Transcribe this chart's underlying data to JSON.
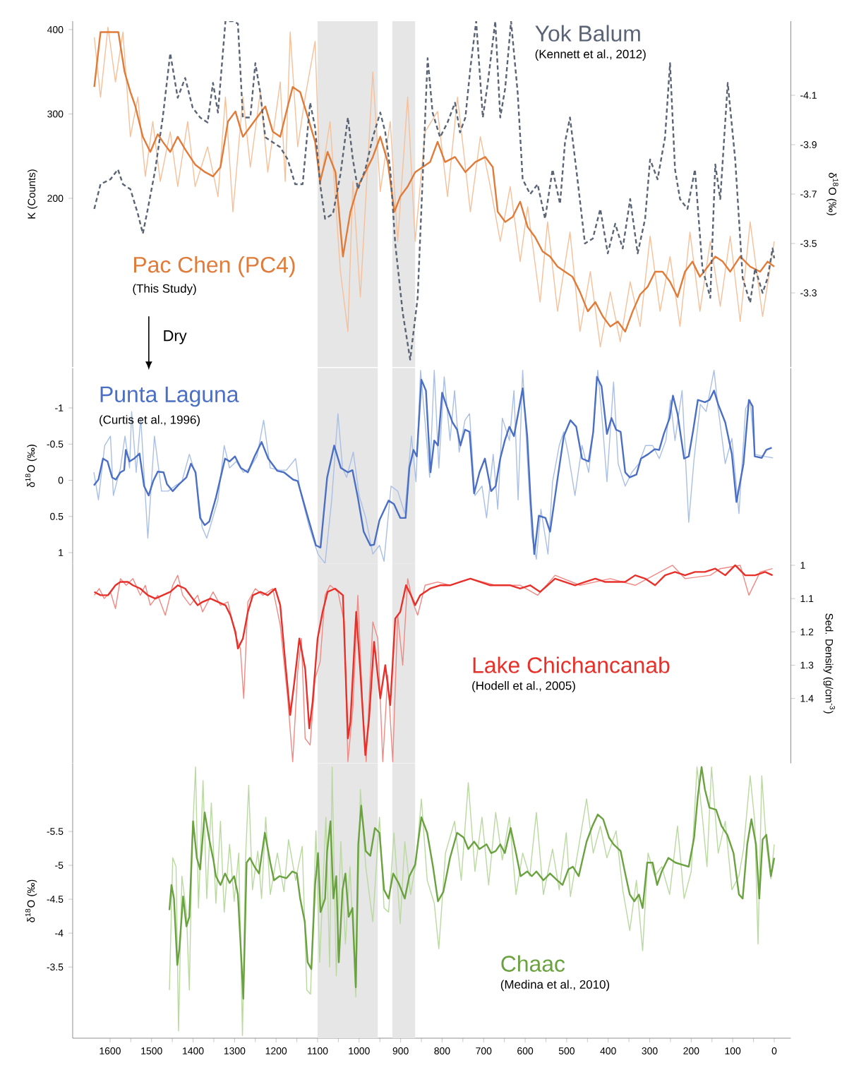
{
  "chart_data": [
    {
      "type": "line",
      "xlim": [
        1690,
        -40
      ],
      "ylim": [
        0,
        410
      ],
      "yticks": [
        200,
        300,
        400
      ],
      "ylabel": "K (Counts)",
      "y2lim": [
        -3.0,
        -4.4
      ],
      "y2ticks": [
        -4.1,
        -3.9,
        -3.7,
        -3.5,
        -3.3
      ],
      "y2label": "δ$^{18}$O (‰)",
      "tick_labels": "y",
      "bands": [
        {
          "axis": "x",
          "from": 1100,
          "to": 955,
          "color": "#e6e6e6"
        },
        {
          "axis": "x",
          "from": 920,
          "to": 865,
          "color": "#e6e6e6"
        }
      ],
      "annotations": [
        "(Kennett et al., 2012)",
        "(This Study)",
        "Dry"
      ],
      "series": [
        {
          "color": "#f5c09a",
          "x": [
            1638,
            1623,
            1605,
            1587,
            1569,
            1551,
            1533,
            1515,
            1497,
            1479,
            1455,
            1437,
            1413,
            1395,
            1365,
            1340,
            1322,
            1304,
            1280,
            1262,
            1238,
            1220,
            1190,
            1178,
            1166,
            1148,
            1130,
            1106,
            1094,
            1070,
            1045,
            1027,
            1015,
            997,
            967,
            949,
            925,
            907,
            883,
            865,
            841,
            811,
            787,
            763,
            732,
            708,
            684,
            660,
            636,
            612,
            594,
            564,
            546,
            522,
            492,
            468,
            443,
            419,
            395,
            371,
            347,
            323,
            299,
            275,
            251,
            227,
            203,
            179,
            154,
            130,
            106,
            82,
            58,
            28,
            0
          ],
          "values": [
            391,
            320,
            403,
            338,
            397,
            273,
            320,
            226,
            291,
            220,
            279,
            214,
            291,
            214,
            261,
            202,
            320,
            184,
            320,
            237,
            326,
            231,
            338,
            220,
            397,
            261,
            320,
            386,
            214,
            291,
            113,
            42,
            220,
            83,
            350,
            208,
            291,
            149,
            320,
            149,
            279,
            303,
            202,
            320,
            184,
            273,
            214,
            149,
            214,
            125,
            190,
            77,
            172,
            66,
            160,
            42,
            113,
            24,
            89,
            30,
            101,
            48,
            155,
            66,
            131,
            48,
            160,
            66,
            149,
            72,
            155,
            54,
            172,
            60,
            149
          ]
        },
        {
          "name": "Pac Chen (PC4)",
          "color": "#e07b39",
          "x": [
            1638,
            1623,
            1580,
            1565,
            1551,
            1539,
            1521,
            1503,
            1485,
            1473,
            1455,
            1437,
            1419,
            1395,
            1371,
            1352,
            1334,
            1316,
            1298,
            1280,
            1262,
            1244,
            1226,
            1208,
            1190,
            1172,
            1160,
            1142,
            1124,
            1106,
            1094,
            1076,
            1057,
            1039,
            1021,
            1003,
            985,
            967,
            949,
            931,
            915,
            901,
            883,
            865,
            847,
            829,
            811,
            793,
            769,
            744,
            720,
            696,
            678,
            666,
            648,
            630,
            612,
            594,
            576,
            558,
            540,
            522,
            504,
            486,
            468,
            449,
            431,
            413,
            395,
            377,
            359,
            341,
            323,
            305,
            287,
            269,
            251,
            233,
            215,
            197,
            179,
            160,
            142,
            124,
            106,
            82,
            58,
            34,
            16,
            0
          ],
          "values": [
            332,
            397,
            397,
            350,
            326,
            309,
            273,
            255,
            276,
            267,
            255,
            273,
            258,
            240,
            231,
            226,
            237,
            291,
            303,
            273,
            285,
            297,
            309,
            279,
            273,
            309,
            332,
            326,
            297,
            267,
            220,
            255,
            231,
            131,
            184,
            214,
            231,
            249,
            273,
            243,
            184,
            202,
            214,
            231,
            237,
            243,
            267,
            243,
            249,
            231,
            243,
            249,
            237,
            184,
            172,
            178,
            196,
            166,
            154,
            137,
            131,
            119,
            113,
            107,
            89,
            66,
            77,
            60,
            48,
            54,
            42,
            66,
            86,
            95,
            113,
            113,
            101,
            83,
            113,
            125,
            107,
            119,
            131,
            125,
            113,
            131,
            119,
            113,
            125,
            119
          ]
        },
        {
          "name": "Yok Balum",
          "color": "#5a6475",
          "axis": "y2",
          "line_style": "dashed",
          "x": [
            1638,
            1623,
            1599,
            1581,
            1569,
            1551,
            1533,
            1521,
            1509,
            1491,
            1473,
            1455,
            1437,
            1419,
            1401,
            1383,
            1365,
            1352,
            1340,
            1322,
            1304,
            1292,
            1280,
            1262,
            1250,
            1238,
            1226,
            1208,
            1190,
            1172,
            1154,
            1136,
            1118,
            1106,
            1094,
            1082,
            1063,
            1045,
            1027,
            1015,
            1003,
            985,
            967,
            949,
            937,
            925,
            913,
            895,
            877,
            859,
            847,
            835,
            823,
            805,
            787,
            769,
            757,
            744,
            732,
            718,
            702,
            690,
            672,
            660,
            648,
            634,
            618,
            606,
            588,
            570,
            552,
            534,
            516,
            504,
            492,
            474,
            456,
            437,
            419,
            401,
            383,
            365,
            347,
            329,
            311,
            299,
            281,
            263,
            251,
            239,
            227,
            209,
            191,
            173,
            154,
            142,
            130,
            112,
            94,
            76,
            58,
            46,
            28,
            16,
            4,
            0
          ],
          "values": [
            -3.64,
            -3.74,
            -3.76,
            -3.8,
            -3.74,
            -3.72,
            -3.62,
            -3.54,
            -3.64,
            -3.8,
            -4.01,
            -4.27,
            -4.09,
            -4.17,
            -4.05,
            -4.01,
            -3.99,
            -4.15,
            -4.03,
            -4.4,
            -4.4,
            -4.39,
            -4.01,
            -4.01,
            -4.23,
            -4.11,
            -3.93,
            -3.91,
            -3.89,
            -3.84,
            -3.74,
            -3.74,
            -4.07,
            -3.97,
            -3.74,
            -3.6,
            -3.62,
            -3.78,
            -4.01,
            -3.84,
            -3.72,
            -3.8,
            -3.93,
            -4.03,
            -3.95,
            -3.8,
            -3.5,
            -3.22,
            -3.03,
            -3.28,
            -3.76,
            -4.25,
            -4.03,
            -3.93,
            -3.99,
            -4.07,
            -3.95,
            -4.01,
            -4.21,
            -4.4,
            -4.01,
            -4.15,
            -4.4,
            -4.01,
            -4.13,
            -4.4,
            -4.11,
            -3.76,
            -3.7,
            -3.74,
            -3.6,
            -3.8,
            -3.66,
            -3.91,
            -4.01,
            -3.76,
            -3.5,
            -3.52,
            -3.64,
            -3.46,
            -3.58,
            -3.48,
            -3.68,
            -3.46,
            -3.6,
            -3.84,
            -3.76,
            -3.93,
            -4.23,
            -3.8,
            -3.68,
            -3.64,
            -3.8,
            -3.4,
            -3.28,
            -3.82,
            -3.68,
            -4.15,
            -3.84,
            -3.36,
            -3.26,
            -3.4,
            -3.3,
            -3.36,
            -3.48,
            -3.44
          ]
        }
      ]
    },
    {
      "type": "line",
      "xlim": [
        1690,
        -40
      ],
      "ylim": [
        1.15,
        -1.55
      ],
      "yticks": [
        -1,
        -0.5,
        0,
        0.5,
        1
      ],
      "ylabel": "δ$^{18}$O (‰)",
      "tick_labels": "y",
      "bands": [
        {
          "axis": "x",
          "from": 1100,
          "to": 955,
          "color": "#e6e6e6"
        },
        {
          "axis": "x",
          "from": 920,
          "to": 865,
          "color": "#e6e6e6"
        }
      ],
      "annotations": [
        "(Curtis et al., 1996)"
      ],
      "series": [
        {
          "color": "#a9bfe6",
          "x": [
            1639,
            1628,
            1613,
            1599,
            1592,
            1575,
            1564,
            1553,
            1548,
            1537,
            1526,
            1509,
            1493,
            1476,
            1460,
            1444,
            1427,
            1409,
            1394,
            1378,
            1367,
            1354,
            1340,
            1325,
            1312,
            1296,
            1279,
            1263,
            1246,
            1230,
            1214,
            1192,
            1175,
            1153,
            1142,
            1120,
            1099,
            1082,
            1066,
            1051,
            1040,
            1030,
            1014,
            1000,
            984,
            967,
            951,
            940,
            923,
            907,
            890,
            874,
            863,
            852,
            841,
            830,
            819,
            808,
            795,
            781,
            770,
            759,
            745,
            734,
            721,
            704,
            693,
            677,
            666,
            655,
            638,
            627,
            617,
            606,
            595,
            584,
            573,
            562,
            545,
            534,
            518,
            507,
            496,
            480,
            463,
            447,
            436,
            425,
            414,
            403,
            387,
            376,
            359,
            343,
            326,
            310,
            293,
            277,
            261,
            250,
            239,
            222,
            206,
            193,
            178,
            164,
            145,
            135,
            118,
            102,
            85,
            69,
            58,
            47,
            25,
            3
          ],
          "values": [
            -0.11,
            0.27,
            -0.48,
            -0.61,
            0.21,
            -0.17,
            -0.61,
            -0.17,
            -0.95,
            -0.11,
            -0.86,
            0.8,
            -0.61,
            0.15,
            0.15,
            0.08,
            0.02,
            -0.36,
            -0.08,
            0.65,
            0.8,
            0.55,
            0.27,
            -0.48,
            -0.17,
            -0.26,
            -0.11,
            -0.17,
            -0.33,
            -0.83,
            -0.17,
            -0.14,
            -0.14,
            -0.3,
            0.15,
            0.65,
            1.02,
            1.15,
            0.27,
            -0.92,
            -0.17,
            -0.04,
            -0.39,
            0.21,
            0.52,
            1.02,
            0.9,
            1.12,
            0.08,
            0.15,
            0.46,
            -0.61,
            0.02,
            -1.52,
            -0.8,
            -0.04,
            -1.52,
            -0.17,
            -1.43,
            -0.55,
            -1.24,
            -0.39,
            -0.83,
            -0.92,
            0.21,
            0.08,
            0.52,
            -0.36,
            0.4,
            -0.86,
            -0.55,
            -1.24,
            0.27,
            -1.52,
            -0.33,
            0.77,
            1.09,
            0.4,
            1.02,
            0.02,
            -0.48,
            -0.67,
            -0.36,
            0.21,
            -0.48,
            -0.11,
            -0.67,
            -1.52,
            -0.8,
            0.02,
            -1.36,
            -0.23,
            0.08,
            -0.11,
            -0.23,
            -0.48,
            -0.48,
            -0.3,
            -0.55,
            -1.11,
            -0.55,
            -1.24,
            0.58,
            -0.3,
            -1.05,
            -0.95,
            -1.52,
            -0.99,
            -0.23,
            -0.58,
            0.46,
            -0.99,
            -1.11,
            -0.36,
            -0.33,
            -0.31
          ]
        },
        {
          "name": "Punta Laguna",
          "color": "#4a6fc4",
          "x": [
            1639,
            1628,
            1617,
            1606,
            1595,
            1586,
            1575,
            1566,
            1562,
            1553,
            1542,
            1529,
            1518,
            1507,
            1496,
            1485,
            1471,
            1463,
            1449,
            1433,
            1416,
            1405,
            1394,
            1383,
            1372,
            1361,
            1345,
            1323,
            1312,
            1299,
            1285,
            1268,
            1252,
            1235,
            1219,
            1197,
            1181,
            1159,
            1148,
            1126,
            1104,
            1093,
            1077,
            1060,
            1044,
            1027,
            1016,
            1003,
            989,
            973,
            964,
            951,
            929,
            916,
            901,
            888,
            879,
            869,
            861,
            850,
            839,
            828,
            819,
            810,
            800,
            789,
            775,
            764,
            756,
            745,
            734,
            723,
            710,
            697,
            682,
            671,
            660,
            649,
            638,
            627,
            617,
            606,
            595,
            587,
            578,
            567,
            551,
            540,
            523,
            507,
            491,
            477,
            463,
            447,
            436,
            427,
            416,
            403,
            392,
            381,
            370,
            359,
            348,
            332,
            321,
            304,
            288,
            277,
            266,
            252,
            244,
            233,
            217,
            206,
            195,
            184,
            167,
            156,
            145,
            135,
            118,
            102,
            91,
            74,
            61,
            52,
            47,
            30,
            19,
            6
          ],
          "values": [
            0.07,
            -0.01,
            -0.3,
            -0.26,
            -0.04,
            -0.01,
            -0.11,
            -0.14,
            -0.42,
            -0.26,
            -0.3,
            -0.37,
            0.08,
            0.21,
            0.01,
            -0.12,
            -0.11,
            0.05,
            0.15,
            0.05,
            -0.04,
            -0.23,
            -0.11,
            0.52,
            0.62,
            0.57,
            0.24,
            -0.3,
            -0.26,
            -0.33,
            -0.17,
            -0.11,
            -0.33,
            -0.53,
            -0.3,
            -0.13,
            -0.11,
            -0.01,
            0.01,
            0.46,
            0.9,
            0.93,
            -0.04,
            -0.48,
            -0.17,
            -0.11,
            -0.14,
            0.24,
            0.71,
            0.9,
            0.89,
            0.55,
            0.28,
            0.33,
            0.52,
            0.52,
            -0.17,
            -0.42,
            -0.33,
            -1.39,
            -1.24,
            -0.11,
            -0.55,
            -0.48,
            -1.21,
            -1.02,
            -0.8,
            -0.7,
            -0.48,
            -0.7,
            -0.67,
            0.18,
            -0.11,
            -0.3,
            0.15,
            0.08,
            -0.3,
            -0.55,
            -0.74,
            -0.61,
            -0.92,
            -1.27,
            -0.61,
            0.27,
            1.02,
            0.49,
            0.52,
            0.71,
            0.02,
            -0.61,
            -0.83,
            -0.74,
            -0.3,
            -0.26,
            -0.67,
            -1.43,
            -1.3,
            -0.64,
            -0.86,
            -0.7,
            -0.67,
            -0.11,
            -0.04,
            -0.08,
            -0.3,
            -0.36,
            -0.43,
            -0.42,
            -0.64,
            -0.86,
            -1.17,
            -0.92,
            -0.3,
            -0.33,
            -0.7,
            -1.11,
            -1.08,
            -1.11,
            -1.24,
            -1.05,
            -0.8,
            -0.36,
            0.3,
            -0.23,
            -1.11,
            -1.02,
            -0.33,
            -0.31,
            -0.42,
            -0.45
          ]
        }
      ]
    },
    {
      "type": "line",
      "xlim": [
        1690,
        -40
      ],
      "y2lim": [
        1.595,
        0.995
      ],
      "y2ticks": [
        1,
        1.1,
        1.2,
        1.3,
        1.4
      ],
      "y2label": "Sed. Density (g/cm$^{-3}$)",
      "tick_labels": "y",
      "bands": [
        {
          "axis": "x",
          "from": 1100,
          "to": 955,
          "color": "#e6e6e6"
        },
        {
          "axis": "x",
          "from": 920,
          "to": 865,
          "color": "#e6e6e6"
        }
      ],
      "annotations": [
        "(Hodell et al., 2005)"
      ],
      "series": [
        {
          "color": "#f08a85",
          "axis": "y2",
          "x": [
            1638,
            1626,
            1614,
            1599,
            1587,
            1575,
            1561,
            1545,
            1527,
            1515,
            1503,
            1485,
            1467,
            1449,
            1437,
            1425,
            1407,
            1389,
            1377,
            1352,
            1334,
            1316,
            1298,
            1286,
            1278,
            1268,
            1250,
            1232,
            1208,
            1190,
            1172,
            1160,
            1148,
            1139,
            1130,
            1118,
            1106,
            1094,
            1082,
            1070,
            1051,
            1036,
            1027,
            1015,
            1003,
            991,
            983,
            967,
            955,
            943,
            931,
            919,
            907,
            895,
            883,
            871,
            859,
            841,
            811,
            781,
            732,
            672,
            612,
            570,
            528,
            468,
            395,
            335,
            275,
            245,
            215,
            154,
            130,
            82,
            61,
            34,
            4
          ],
          "values": [
            1.09,
            1.07,
            1.1,
            1.08,
            1.13,
            1.04,
            1.06,
            1.04,
            1.09,
            1.06,
            1.12,
            1.09,
            1.15,
            1.06,
            1.03,
            1.09,
            1.12,
            1.09,
            1.14,
            1.08,
            1.12,
            1.11,
            1.21,
            1.25,
            1.4,
            1.11,
            1.07,
            1.09,
            1.07,
            1.18,
            1.4,
            1.59,
            1.32,
            1.22,
            1.52,
            1.54,
            1.34,
            1.29,
            1.09,
            1.06,
            1.08,
            1.17,
            1.59,
            1.43,
            1.09,
            1.44,
            1.59,
            1.17,
            1.22,
            1.59,
            1.33,
            1.59,
            1.15,
            1.3,
            1.04,
            1.11,
            1.15,
            1.06,
            1.05,
            1.06,
            1.04,
            1.06,
            1.06,
            1.09,
            1.03,
            1.06,
            1.04,
            1.06,
            1.02,
            1.0,
            1.04,
            1.03,
            1.01,
            1.0,
            1.09,
            1.02,
            1.01
          ]
        },
        {
          "name": "Lake Chichancanab",
          "color": "#e8302a",
          "axis": "y2",
          "x": [
            1638,
            1623,
            1605,
            1587,
            1575,
            1557,
            1545,
            1527,
            1509,
            1491,
            1473,
            1455,
            1437,
            1419,
            1401,
            1389,
            1377,
            1358,
            1340,
            1322,
            1310,
            1298,
            1292,
            1280,
            1268,
            1256,
            1238,
            1220,
            1202,
            1190,
            1178,
            1166,
            1156,
            1144,
            1130,
            1120,
            1112,
            1100,
            1088,
            1076,
            1058,
            1039,
            1027,
            1021,
            1007,
            997,
            985,
            976,
            964,
            949,
            937,
            925,
            913,
            901,
            887,
            875,
            865,
            853,
            829,
            805,
            781,
            757,
            732,
            708,
            684,
            660,
            636,
            612,
            588,
            564,
            546,
            528,
            504,
            480,
            456,
            431,
            407,
            383,
            359,
            335,
            311,
            287,
            263,
            239,
            215,
            191,
            167,
            142,
            118,
            94,
            70,
            46,
            22,
            4
          ],
          "values": [
            1.08,
            1.09,
            1.09,
            1.06,
            1.05,
            1.05,
            1.06,
            1.07,
            1.09,
            1.1,
            1.09,
            1.08,
            1.06,
            1.07,
            1.1,
            1.12,
            1.11,
            1.1,
            1.11,
            1.12,
            1.15,
            1.2,
            1.25,
            1.22,
            1.14,
            1.09,
            1.08,
            1.09,
            1.07,
            1.12,
            1.29,
            1.45,
            1.35,
            1.22,
            1.31,
            1.49,
            1.41,
            1.22,
            1.14,
            1.08,
            1.07,
            1.09,
            1.52,
            1.47,
            1.14,
            1.32,
            1.57,
            1.46,
            1.23,
            1.4,
            1.3,
            1.42,
            1.16,
            1.14,
            1.06,
            1.09,
            1.12,
            1.09,
            1.07,
            1.06,
            1.06,
            1.05,
            1.04,
            1.05,
            1.06,
            1.06,
            1.06,
            1.07,
            1.06,
            1.08,
            1.06,
            1.04,
            1.05,
            1.06,
            1.05,
            1.04,
            1.05,
            1.05,
            1.05,
            1.03,
            1.04,
            1.06,
            1.03,
            1.02,
            1.03,
            1.02,
            1.02,
            1.01,
            1.03,
            1.0,
            1.03,
            1.03,
            1.02,
            1.03
          ]
        }
      ]
    },
    {
      "type": "line",
      "xlim": [
        1690,
        -40
      ],
      "ylim": [
        -2.45,
        -6.5
      ],
      "yticks": [
        -5.5,
        -5,
        -4.5,
        -4,
        -3.5
      ],
      "ylabel": "δ$^{18}$O (‰)",
      "xticks": [
        1600,
        1500,
        1400,
        1300,
        1200,
        1100,
        1000,
        900,
        800,
        700,
        600,
        500,
        400,
        300,
        200,
        100,
        0
      ],
      "bands": [
        {
          "axis": "x",
          "from": 1100,
          "to": 955,
          "color": "#e6e6e6"
        },
        {
          "axis": "x",
          "from": 920,
          "to": 865,
          "color": "#e6e6e6"
        }
      ],
      "annotations": [
        "(Medina et al., 2010)"
      ],
      "series": [
        {
          "color": "#b9d9a0",
          "x": [
            1457,
            1449,
            1441,
            1435,
            1427,
            1416,
            1409,
            1402,
            1394,
            1387,
            1376,
            1367,
            1356,
            1345,
            1334,
            1325,
            1312,
            1301,
            1290,
            1281,
            1274,
            1266,
            1257,
            1244,
            1235,
            1225,
            1214,
            1197,
            1181,
            1170,
            1153,
            1137,
            1126,
            1117,
            1104,
            1095,
            1080,
            1071,
            1065,
            1055,
            1044,
            1033,
            1022,
            1008,
            997,
            984,
            967,
            951,
            940,
            929,
            916,
            901,
            890,
            876,
            863,
            850,
            836,
            819,
            808,
            792,
            770,
            754,
            737,
            721,
            704,
            688,
            671,
            655,
            638,
            622,
            606,
            589,
            573,
            556,
            534,
            518,
            501,
            491,
            469,
            452,
            436,
            419,
            403,
            381,
            365,
            348,
            332,
            317,
            304,
            288,
            271,
            252,
            233,
            217,
            200,
            186,
            173,
            162,
            151,
            135,
            118,
            102,
            85,
            74,
            58,
            47,
            39,
            30,
            19,
            8,
            0
          ],
          "values": [
            -3.16,
            -5.11,
            -4.98,
            -2.56,
            -4.84,
            -4.31,
            -3.16,
            -5.38,
            -6.45,
            -4.37,
            -6.25,
            -4.51,
            -5.92,
            -4.44,
            -5.65,
            -4.31,
            -5.31,
            -4.47,
            -5.18,
            -2.49,
            -5.04,
            -6.18,
            -4.64,
            -5.21,
            -4.51,
            -5.71,
            -4.57,
            -5.18,
            -4.61,
            -5.38,
            -4.78,
            -5.28,
            -3.16,
            -3.1,
            -5.51,
            -3.57,
            -5.71,
            -3.5,
            -6.45,
            -3.37,
            -5.35,
            -3.84,
            -4.98,
            -3.06,
            -6.12,
            -4.98,
            -4.17,
            -5.71,
            -4.37,
            -4.31,
            -5.48,
            -4.14,
            -5.35,
            -4.57,
            -5.04,
            -5.98,
            -4.78,
            -4.44,
            -3.77,
            -5.18,
            -5.65,
            -4.78,
            -6.22,
            -4.91,
            -5.71,
            -4.71,
            -5.78,
            -5.08,
            -5.71,
            -4.57,
            -5.18,
            -4.84,
            -5.78,
            -4.57,
            -5.24,
            -4.64,
            -5.48,
            -4.54,
            -5.35,
            -5.98,
            -5.18,
            -5.58,
            -5.11,
            -5.51,
            -4.64,
            -4.04,
            -4.78,
            -3.74,
            -5.18,
            -4.84,
            -4.98,
            -4.57,
            -5.58,
            -4.51,
            -4.91,
            -6.45,
            -5.71,
            -4.98,
            -6.45,
            -5.18,
            -5.65,
            -4.64,
            -4.84,
            -5.24,
            -6.32,
            -5.65,
            -3.84,
            -6.32,
            -5.31,
            -4.8,
            -5.31
          ]
        },
        {
          "name": "Chaac",
          "color": "#6aa23f",
          "x": [
            1457,
            1452,
            1446,
            1438,
            1433,
            1424,
            1416,
            1409,
            1400,
            1391,
            1383,
            1372,
            1361,
            1351,
            1345,
            1334,
            1323,
            1312,
            1301,
            1292,
            1285,
            1279,
            1271,
            1263,
            1252,
            1241,
            1227,
            1214,
            1205,
            1192,
            1175,
            1161,
            1150,
            1142,
            1131,
            1124,
            1115,
            1106,
            1099,
            1093,
            1082,
            1077,
            1069,
            1062,
            1055,
            1049,
            1040,
            1033,
            1025,
            1016,
            1008,
            1002,
            995,
            984,
            973,
            962,
            951,
            940,
            929,
            918,
            905,
            890,
            879,
            865,
            850,
            836,
            822,
            810,
            797,
            781,
            764,
            748,
            737,
            723,
            710,
            693,
            682,
            671,
            660,
            649,
            635,
            622,
            611,
            595,
            584,
            573,
            556,
            540,
            523,
            510,
            496,
            485,
            471,
            452,
            438,
            425,
            412,
            398,
            387,
            370,
            359,
            348,
            337,
            326,
            317,
            306,
            293,
            282,
            271,
            255,
            238,
            222,
            206,
            193,
            184,
            175,
            167,
            156,
            140,
            127,
            113,
            98,
            85,
            76,
            65,
            55,
            44,
            36,
            28,
            19,
            8,
            0
          ],
          "values": [
            -4.34,
            -4.71,
            -4.51,
            -3.53,
            -3.77,
            -4.54,
            -4.1,
            -4.24,
            -5.65,
            -5.11,
            -4.94,
            -5.78,
            -5.38,
            -5.08,
            -4.84,
            -4.71,
            -4.88,
            -4.74,
            -4.84,
            -4.57,
            -3.77,
            -3.03,
            -5.04,
            -5.11,
            -4.98,
            -4.88,
            -5.48,
            -5.04,
            -4.78,
            -4.84,
            -4.81,
            -4.91,
            -4.88,
            -4.51,
            -4.17,
            -3.57,
            -3.47,
            -4.71,
            -5.18,
            -4.31,
            -4.51,
            -5.21,
            -5.65,
            -4.51,
            -4.84,
            -3.57,
            -4.64,
            -4.88,
            -4.24,
            -4.37,
            -3.2,
            -5.31,
            -5.88,
            -5.21,
            -5.14,
            -5.55,
            -5.48,
            -4.64,
            -4.51,
            -4.88,
            -4.74,
            -4.51,
            -4.84,
            -5.01,
            -5.71,
            -5.48,
            -4.98,
            -4.47,
            -4.61,
            -5.11,
            -5.48,
            -5.41,
            -5.24,
            -5.35,
            -5.24,
            -5.31,
            -5.18,
            -5.21,
            -5.31,
            -5.18,
            -5.55,
            -5.18,
            -4.84,
            -4.91,
            -4.84,
            -4.91,
            -4.78,
            -4.88,
            -4.78,
            -4.71,
            -4.94,
            -4.98,
            -4.84,
            -5.35,
            -5.58,
            -5.75,
            -5.68,
            -5.41,
            -5.31,
            -5.21,
            -4.88,
            -4.57,
            -4.47,
            -4.57,
            -4.37,
            -5.04,
            -5.04,
            -4.71,
            -4.91,
            -5.11,
            -5.04,
            -5.01,
            -4.98,
            -5.41,
            -6.02,
            -6.45,
            -6.12,
            -5.85,
            -5.82,
            -5.58,
            -5.45,
            -5.18,
            -4.57,
            -4.51,
            -5.31,
            -5.68,
            -5.31,
            -4.51,
            -5.38,
            -5.45,
            -4.84,
            -5.11
          ]
        }
      ]
    }
  ]
}
